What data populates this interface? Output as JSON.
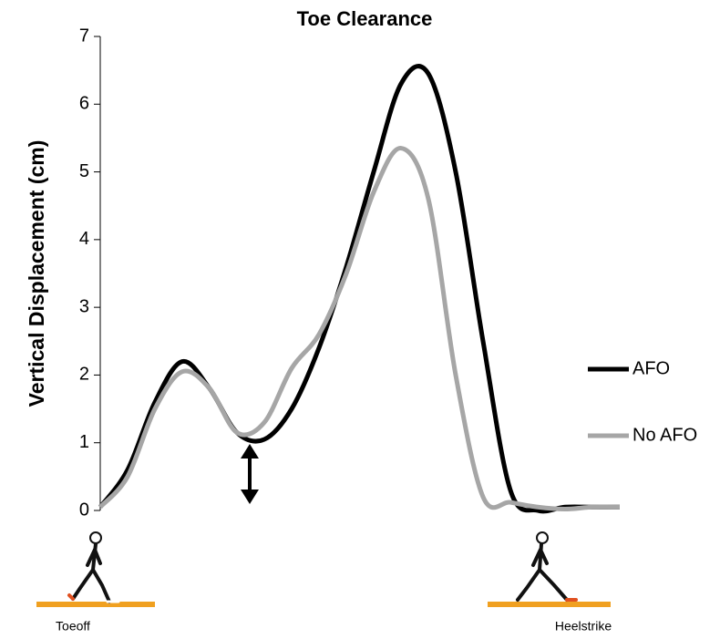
{
  "chart_data": {
    "type": "line",
    "title": "Toe Clearance",
    "y_label": "Vertical Displacement (cm)",
    "annotations": [
      "Toeoff",
      "Heelstrike"
    ],
    "ylim": [
      0,
      7
    ],
    "yticks": [
      0,
      1,
      2,
      3,
      4,
      5,
      6,
      7
    ],
    "legend": "right",
    "series": [
      {
        "name": "AFO",
        "color": "#000000",
        "values": [
          0.05,
          0.6,
          1.6,
          2.2,
          1.8,
          1.15,
          1.05,
          1.5,
          2.4,
          3.6,
          5.0,
          6.3,
          6.45,
          5.0,
          2.5,
          0.3,
          0.0,
          0.05,
          0.05,
          0.05
        ]
      },
      {
        "name": "No AFO",
        "color": "#a6a6a6",
        "values": [
          0.05,
          0.5,
          1.5,
          2.05,
          1.8,
          1.15,
          1.3,
          2.1,
          2.6,
          3.5,
          4.7,
          5.35,
          4.6,
          2.0,
          0.2,
          0.12,
          0.05,
          0.02,
          0.05,
          0.05
        ]
      }
    ]
  }
}
